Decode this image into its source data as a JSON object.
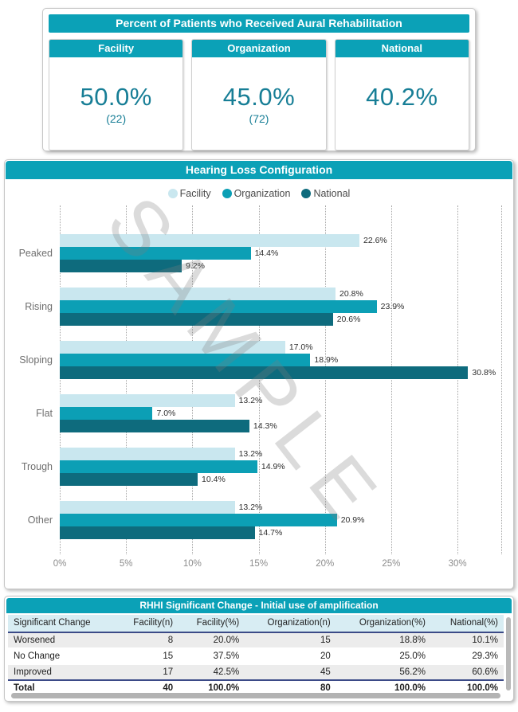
{
  "colors": {
    "teal": "#0ba1b7",
    "value_text": "#177e96",
    "navy_border": "#3b4a87",
    "facility_bar": "#c9e7ef",
    "organization_bar": "#0c9fb5",
    "national_bar": "#0e6b7d"
  },
  "aural_rehab": {
    "title": "Percent of Patients who Received Aural Rehabilitation",
    "cards": [
      {
        "label": "Facility",
        "value": "50.0%",
        "count": "(22)"
      },
      {
        "label": "Organization",
        "value": "45.0%",
        "count": "(72)"
      },
      {
        "label": "National",
        "value": "40.2%",
        "count": ""
      }
    ]
  },
  "chart_data": {
    "type": "bar",
    "orientation": "horizontal",
    "title": "Hearing Loss Configuration",
    "watermark": "SAMPLE",
    "categories": [
      "Peaked",
      "Rising",
      "Sloping",
      "Flat",
      "Trough",
      "Other"
    ],
    "series": [
      {
        "name": "Facility",
        "color": "#c9e7ef",
        "values": [
          22.6,
          20.8,
          17.0,
          13.2,
          13.2,
          13.2
        ],
        "labels": [
          "22.6%",
          "20.8%",
          "17.0%",
          "13.2%",
          "13.2%",
          "13.2%"
        ]
      },
      {
        "name": "Organization",
        "color": "#0c9fb5",
        "values": [
          14.4,
          23.9,
          18.9,
          7.0,
          14.9,
          20.9
        ],
        "labels": [
          "14.4%",
          "23.9%",
          "18.9%",
          "7.0%",
          "14.9%",
          "20.9%"
        ]
      },
      {
        "name": "National",
        "color": "#0e6b7d",
        "values": [
          9.2,
          20.6,
          30.8,
          14.3,
          10.4,
          14.7
        ],
        "labels": [
          "9.2%",
          "20.6%",
          "30.8%",
          "14.3%",
          "10.4%",
          "14.7%"
        ]
      }
    ],
    "x_ticks": [
      {
        "value": 0,
        "label": "0%"
      },
      {
        "value": 5,
        "label": "5%"
      },
      {
        "value": 10,
        "label": "10%"
      },
      {
        "value": 15,
        "label": "15%"
      },
      {
        "value": 20,
        "label": "20%"
      },
      {
        "value": 25,
        "label": "25%"
      },
      {
        "value": 30,
        "label": "30%"
      }
    ],
    "xlim": [
      0,
      33.3
    ],
    "grid": "dotted-vertical",
    "legend_position": "top",
    "value_labels": true
  },
  "table": {
    "title": "RHHI Significant Change - Initial use of amplification",
    "columns": [
      "Significant Change",
      "Facility(n)",
      "Facility(%)",
      "Organization(n)",
      "Organization(%)",
      "National(%)"
    ],
    "rows": [
      {
        "cells": [
          "Worsened",
          "8",
          "20.0%",
          "15",
          "18.8%",
          "10.1%"
        ],
        "is_total": false
      },
      {
        "cells": [
          "No Change",
          "15",
          "37.5%",
          "20",
          "25.0%",
          "29.3%"
        ],
        "is_total": false
      },
      {
        "cells": [
          "Improved",
          "17",
          "42.5%",
          "45",
          "56.2%",
          "60.6%"
        ],
        "is_total": false
      },
      {
        "cells": [
          "Total",
          "40",
          "100.0%",
          "80",
          "100.0%",
          "100.0%"
        ],
        "is_total": true
      }
    ]
  }
}
